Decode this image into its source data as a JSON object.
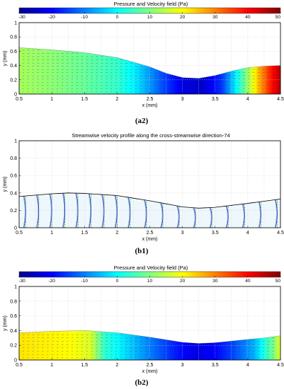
{
  "chart_data": [
    {
      "id": "a2",
      "type": "heatmap",
      "title": "Pressure and Velocity field (Pa)",
      "xlabel": "x (mm)",
      "ylabel": "y (mm)",
      "xlim": [
        0.5,
        4.5
      ],
      "ylim": [
        0,
        1
      ],
      "x_ticks": [
        "0.5",
        "1",
        "1.5",
        "2",
        "2.5",
        "3",
        "3.5",
        "4",
        "4.5"
      ],
      "y_ticks": [
        "0",
        "0.2",
        "0.4",
        "0.6",
        "0.8",
        "1"
      ],
      "colorbar": {
        "range": [
          -30,
          50
        ],
        "ticks": [
          "-30",
          "-20",
          "-10",
          "0",
          "10",
          "20",
          "30",
          "40",
          "50"
        ],
        "location": "top"
      },
      "grid": true,
      "caption": "(a2)",
      "upper_wall": {
        "x": [
          0.5,
          1.0,
          1.5,
          2.0,
          2.5,
          2.75,
          3.0,
          3.25,
          3.5,
          3.75,
          4.0,
          4.25,
          4.5
        ],
        "y": [
          0.65,
          0.62,
          0.58,
          0.51,
          0.38,
          0.29,
          0.23,
          0.22,
          0.26,
          0.32,
          0.37,
          0.39,
          0.4
        ]
      },
      "pressure_by_x": {
        "x": [
          0.5,
          1.0,
          1.5,
          2.0,
          2.3,
          2.7,
          3.0,
          3.3,
          3.6,
          3.8,
          4.0,
          4.2,
          4.35,
          4.5
        ],
        "p": [
          13,
          11,
          8,
          4,
          -2,
          -14,
          -22,
          -24,
          -16,
          -2,
          12,
          28,
          38,
          46
        ]
      }
    },
    {
      "id": "b1",
      "type": "line",
      "title": "Streamwise velocity profile along the cross-streamwise direction-74",
      "xlabel": "x (mm)",
      "ylabel": "y (mm)",
      "xlim": [
        0.5,
        4.5
      ],
      "ylim": [
        0,
        1
      ],
      "x_ticks": [
        "0.5",
        "1",
        "1.5",
        "2",
        "2.5",
        "3",
        "3.5",
        "4",
        "4.5"
      ],
      "y_ticks": [
        "0",
        "0.2",
        "0.4",
        "0.6",
        "0.8",
        "1"
      ],
      "grid": true,
      "caption": "(b1)",
      "upper_wall": {
        "x": [
          0.5,
          1.0,
          1.25,
          1.5,
          2.0,
          2.5,
          3.0,
          3.25,
          3.5,
          4.0,
          4.5
        ],
        "y": [
          0.36,
          0.39,
          0.4,
          0.395,
          0.37,
          0.31,
          0.24,
          0.225,
          0.235,
          0.28,
          0.33
        ]
      },
      "profile_stations_x": [
        0.6,
        0.8,
        1.0,
        1.2,
        1.4,
        1.6,
        1.8,
        2.0,
        2.2,
        2.45,
        2.7,
        2.95,
        3.2,
        3.45,
        3.7,
        3.95,
        4.2,
        4.45
      ]
    },
    {
      "id": "b2",
      "type": "heatmap",
      "title": "Pressure and Velocity field (Pa)",
      "xlabel": "x (mm)",
      "ylabel": "y (mm)",
      "xlim": [
        0.5,
        4.5
      ],
      "ylim": [
        0,
        1
      ],
      "x_ticks": [
        "0.5",
        "1",
        "1.5",
        "2",
        "2.5",
        "3",
        "3.5",
        "4",
        "4.5"
      ],
      "y_ticks": [
        "0",
        "0.2",
        "0.4",
        "0.6",
        "0.8",
        "1"
      ],
      "colorbar": {
        "range": [
          -30,
          50
        ],
        "ticks": [
          "-30",
          "-20",
          "-10",
          "0",
          "10",
          "20",
          "30",
          "40",
          "50"
        ],
        "location": "top"
      },
      "grid": true,
      "caption": "(b2)",
      "upper_wall": {
        "x": [
          0.5,
          1.0,
          1.5,
          2.0,
          2.5,
          3.0,
          3.25,
          3.5,
          4.0,
          4.25,
          4.5
        ],
        "y": [
          0.37,
          0.39,
          0.4,
          0.37,
          0.31,
          0.24,
          0.225,
          0.235,
          0.28,
          0.3,
          0.33
        ]
      },
      "pressure_by_x": {
        "x": [
          0.5,
          0.9,
          1.3,
          1.6,
          1.8,
          2.1,
          2.5,
          2.9,
          3.2,
          3.5,
          3.8,
          4.1,
          4.4,
          4.5
        ],
        "p": [
          22,
          21,
          20,
          17,
          4,
          -2,
          -10,
          -18,
          -22,
          -20,
          -14,
          -6,
          10,
          18
        ]
      }
    }
  ]
}
